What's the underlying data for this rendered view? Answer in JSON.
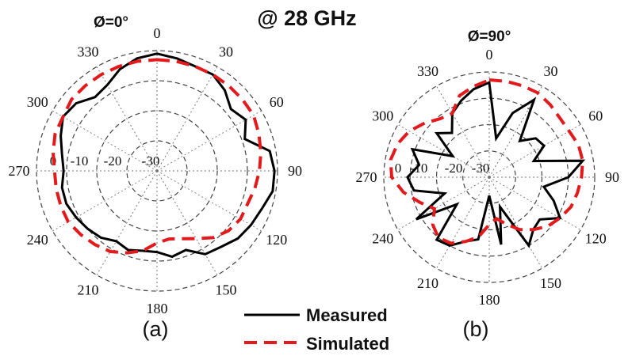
{
  "title": "@ 28 GHz",
  "legend": [
    {
      "label": "Measured",
      "color": "#000000",
      "style": "solid"
    },
    {
      "label": "Simulated",
      "color": "#e31a1c",
      "style": "dashed"
    }
  ],
  "chart_data": [
    {
      "type": "polar",
      "caption": "(a)",
      "phi_label": "Ø=0°",
      "angle_labels": [
        "0",
        "30",
        "60",
        "90",
        "120",
        "150",
        "180",
        "210",
        "240",
        "270",
        "300",
        "330"
      ],
      "radial_labels": [
        "0",
        "-10",
        "-20",
        "-30"
      ],
      "rlim": [
        -40,
        0
      ],
      "grid": true,
      "series": [
        {
          "name": "Measured",
          "theta": [
            0,
            10,
            20,
            30,
            40,
            50,
            60,
            70,
            80,
            90,
            100,
            110,
            120,
            130,
            140,
            150,
            160,
            170,
            180,
            190,
            200,
            210,
            220,
            230,
            240,
            250,
            260,
            270,
            280,
            290,
            300,
            310,
            320,
            330,
            340,
            350
          ],
          "r": [
            -1,
            -2,
            -3,
            -3,
            -5,
            -8,
            -6,
            -9,
            -2,
            -1,
            -1,
            -3,
            -4,
            -5,
            -7,
            -8,
            -12,
            -11,
            -13,
            -13,
            -12,
            -13,
            -11,
            -10,
            -9,
            -8,
            -8,
            -9,
            -8,
            -6,
            -4,
            -5,
            -8,
            -7,
            -4,
            -2
          ]
        },
        {
          "name": "Simulated",
          "theta": [
            0,
            10,
            20,
            30,
            40,
            50,
            60,
            70,
            80,
            90,
            100,
            110,
            120,
            130,
            140,
            150,
            160,
            170,
            180,
            190,
            200,
            210,
            220,
            230,
            240,
            250,
            260,
            270,
            280,
            290,
            300,
            310,
            320,
            330,
            340,
            350
          ],
          "r": [
            -3,
            -3,
            -3,
            -3,
            -3,
            -3,
            -3,
            -4,
            -5,
            -6,
            -7,
            -8,
            -8,
            -9,
            -11,
            -14,
            -16,
            -17,
            -16,
            -13,
            -11,
            -9,
            -8,
            -7,
            -6,
            -6,
            -6,
            -6,
            -5,
            -4,
            -4,
            -3,
            -3,
            -3,
            -3,
            -3
          ]
        }
      ]
    },
    {
      "type": "polar",
      "caption": "(b)",
      "phi_label": "Ø=90°",
      "angle_labels": [
        "0",
        "30",
        "60",
        "90",
        "120",
        "150",
        "180",
        "210",
        "240",
        "270",
        "300",
        "330"
      ],
      "radial_labels": [
        "0",
        "-10",
        "-20",
        "-30"
      ],
      "rlim": [
        -40,
        0
      ],
      "grid": true,
      "series": [
        {
          "name": "Measured",
          "theta": [
            0,
            10,
            20,
            30,
            40,
            50,
            60,
            70,
            80,
            90,
            100,
            110,
            120,
            130,
            140,
            150,
            160,
            170,
            180,
            190,
            200,
            210,
            220,
            230,
            240,
            250,
            260,
            270,
            280,
            290,
            300,
            310,
            320,
            330,
            340,
            350
          ],
          "r": [
            -4,
            -25,
            -14,
            -6,
            -22,
            -17,
            -16,
            -22,
            -4,
            -10,
            -19,
            -14,
            -9,
            -15,
            -14,
            -10,
            -28,
            -14,
            -33,
            -16,
            -14,
            -10,
            -9,
            -24,
            -8,
            -22,
            -11,
            -9,
            -13,
            -9,
            -24,
            -14,
            -18,
            -12,
            -9,
            -6
          ]
        },
        {
          "name": "Simulated",
          "theta": [
            0,
            10,
            20,
            30,
            40,
            50,
            60,
            70,
            80,
            90,
            100,
            110,
            120,
            130,
            140,
            150,
            160,
            170,
            180,
            190,
            200,
            210,
            220,
            230,
            240,
            250,
            260,
            270,
            280,
            290,
            300,
            310,
            320,
            330,
            340,
            350
          ],
          "r": [
            -3,
            -3,
            -3,
            -3,
            -4,
            -5,
            -5,
            -4,
            -4,
            -5,
            -6,
            -7,
            -9,
            -11,
            -14,
            -17,
            -21,
            -24,
            -22,
            -17,
            -14,
            -11,
            -10,
            -12,
            -16,
            -12,
            -7,
            -3,
            -2,
            -3,
            -5,
            -8,
            -11,
            -12,
            -7,
            -5
          ]
        }
      ]
    }
  ]
}
